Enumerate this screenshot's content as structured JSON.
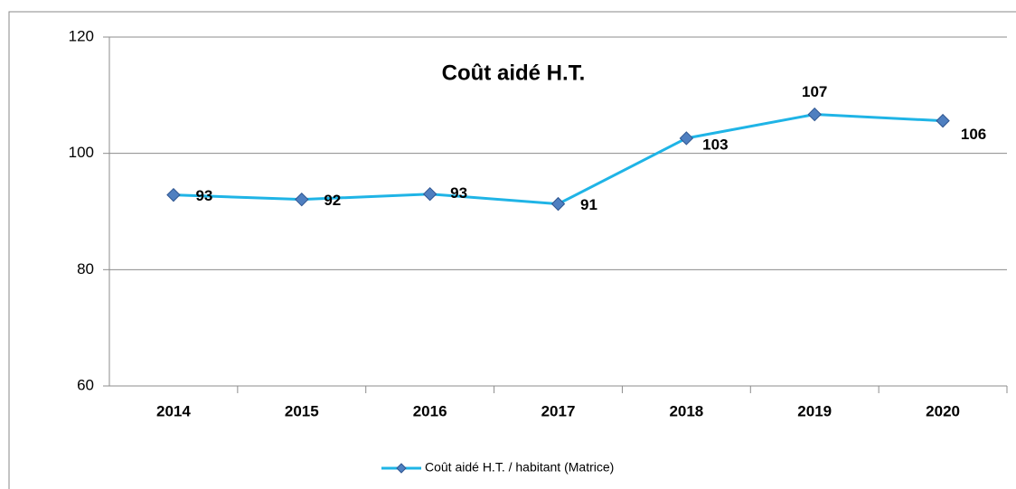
{
  "chart_data": {
    "type": "line",
    "title": "Coût aidé H.T.",
    "categories": [
      "2014",
      "2015",
      "2016",
      "2017",
      "2018",
      "2019",
      "2020"
    ],
    "series": [
      {
        "name": "Coût aidé H.T. / habitant (Matrice)",
        "color": "#1fb4e6",
        "values": [
          92.85,
          92.07,
          93.0,
          91.3,
          102.6,
          106.7,
          105.6
        ],
        "value_labels": [
          "93",
          "92",
          "93",
          "91",
          "103",
          "107",
          "106"
        ]
      }
    ],
    "ylim": [
      60,
      120
    ],
    "yticks": [
      60,
      80,
      100,
      120
    ],
    "grid": true
  }
}
